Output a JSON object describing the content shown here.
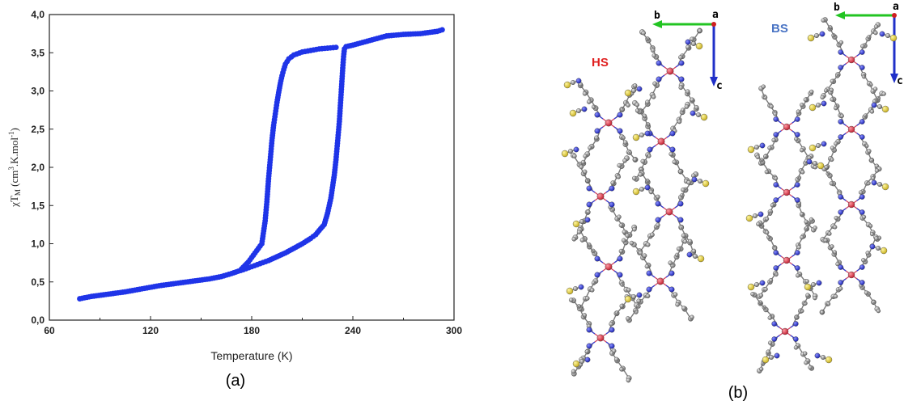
{
  "colors": {
    "data": "#1f34e8",
    "axis": "#222222",
    "hs": "#e02020",
    "bs": "#4a74c4",
    "arrow_b": "#22c422",
    "arrow_c": "#2030c8",
    "atom_c": "#8a8a8a",
    "atom_n": "#2a34d8",
    "atom_s": "#e6d23c",
    "atom_fe": "#e04050"
  },
  "panel_a_label": "(a)",
  "panel_b_label": "(b)",
  "structure": {
    "hs_label": "HS",
    "bs_label": "BS",
    "axis_a": "a",
    "axis_b": "b",
    "axis_c": "c"
  },
  "chart_data": {
    "type": "scatter",
    "xlabel": "Temperature (K)",
    "ylabel": "χT",
    "ylabel_sub": "M",
    "ylabel_unit_pre": " (cm",
    "ylabel_unit_sup1": "3",
    "ylabel_unit_mid": ".K.mol",
    "ylabel_unit_sup2": "-1",
    "ylabel_unit_post": ")",
    "xlim": [
      60,
      300
    ],
    "ylim": [
      0.0,
      4.0
    ],
    "x_ticks": [
      60,
      120,
      180,
      240,
      300
    ],
    "x_tick_labels": [
      "60",
      "120",
      "180",
      "240",
      "300"
    ],
    "y_ticks": [
      0.0,
      0.5,
      1.0,
      1.5,
      2.0,
      2.5,
      3.0,
      3.5,
      4.0
    ],
    "y_tick_labels": [
      "0,0",
      "0,5",
      "1,0",
      "1,5",
      "2,0",
      "2,5",
      "3,0",
      "3,5",
      "4,0"
    ],
    "grid": false,
    "series": [
      {
        "x": [
          78,
          85,
          95,
          105,
          115,
          125,
          135,
          145,
          155,
          162,
          168,
          172,
          175,
          180,
          185,
          190,
          195,
          200,
          205,
          210,
          215,
          218,
          221,
          223,
          225,
          227,
          229,
          230,
          231,
          232,
          233,
          234,
          234.5,
          235,
          236,
          240,
          250,
          260,
          270,
          280,
          290,
          293
        ],
        "y": [
          0.28,
          0.31,
          0.34,
          0.37,
          0.41,
          0.45,
          0.48,
          0.51,
          0.54,
          0.57,
          0.61,
          0.64,
          0.66,
          0.7,
          0.74,
          0.78,
          0.83,
          0.88,
          0.94,
          1.0,
          1.07,
          1.12,
          1.2,
          1.25,
          1.4,
          1.6,
          1.9,
          2.1,
          2.35,
          2.6,
          2.95,
          3.3,
          3.45,
          3.55,
          3.58,
          3.6,
          3.66,
          3.72,
          3.74,
          3.75,
          3.78,
          3.8
        ]
      },
      {
        "x": [
          174,
          178,
          182,
          186,
          188,
          189,
          190,
          191,
          192,
          193,
          194,
          195,
          196,
          197,
          198,
          199,
          200,
          202,
          205,
          210,
          215,
          220,
          225,
          230
        ],
        "y": [
          0.67,
          0.76,
          0.88,
          1.0,
          1.3,
          1.55,
          1.85,
          2.1,
          2.35,
          2.55,
          2.7,
          2.85,
          2.98,
          3.1,
          3.2,
          3.28,
          3.35,
          3.42,
          3.47,
          3.51,
          3.53,
          3.55,
          3.56,
          3.57
        ]
      }
    ]
  }
}
